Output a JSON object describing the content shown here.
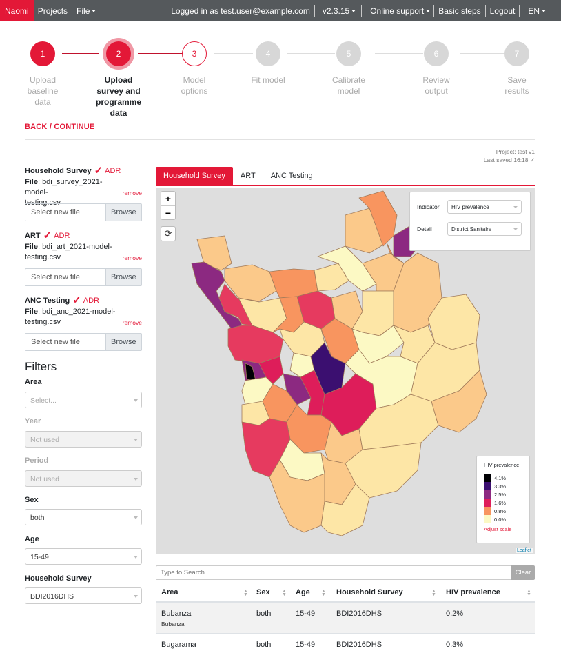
{
  "navbar": {
    "brand": "Naomi",
    "projects": "Projects",
    "file": "File",
    "logged_in": "Logged in as test.user@example.com",
    "version": "v2.3.15",
    "online_support": "Online support",
    "basic_steps": "Basic steps",
    "logout": "Logout",
    "language": "EN"
  },
  "stepper": {
    "steps": [
      {
        "number": "1",
        "label_lines": [
          "Upload",
          "baseline",
          "data"
        ],
        "state": "done"
      },
      {
        "number": "2",
        "label_lines": [
          "Upload",
          "survey and",
          "programme",
          "data"
        ],
        "state": "active"
      },
      {
        "number": "3",
        "label_lines": [
          "Model",
          "options"
        ],
        "state": "next"
      },
      {
        "number": "4",
        "label_lines": [
          "Fit model"
        ],
        "state": "todo"
      },
      {
        "number": "5",
        "label_lines": [
          "Calibrate",
          "model"
        ],
        "state": "todo"
      },
      {
        "number": "6",
        "label_lines": [
          "Review",
          "output"
        ],
        "state": "todo"
      },
      {
        "number": "7",
        "label_lines": [
          "Save",
          "results"
        ],
        "state": "todo"
      }
    ]
  },
  "nav": {
    "back": "BACK",
    "slash": " / ",
    "continue": "CONTINUE"
  },
  "project": {
    "name": "Project: test v1",
    "last_saved": "Last saved 16:18 ✓"
  },
  "uploads": [
    {
      "title": "Household Survey",
      "adr": "ADR",
      "file_label": "File",
      "file_lines": [
        ": bdi_survey_2021-model-",
        "testing.csv"
      ],
      "remove": "remove",
      "placeholder": "Select new file",
      "browse": "Browse"
    },
    {
      "title": "ART",
      "adr": "ADR",
      "file_label": "File",
      "file_lines": [
        ": bdi_art_2021-model-",
        "testing.csv"
      ],
      "remove": "remove",
      "placeholder": "Select new file",
      "browse": "Browse"
    },
    {
      "title": "ANC Testing",
      "adr": "ADR",
      "file_label": "File",
      "file_lines": [
        ": bdi_anc_2021-model-",
        "testing.csv"
      ],
      "remove": "remove",
      "placeholder": "Select new file",
      "browse": "Browse"
    }
  ],
  "filters": {
    "title": "Filters",
    "area": {
      "label": "Area",
      "value": "Select..."
    },
    "year": {
      "label": "Year",
      "value": "Not used"
    },
    "period": {
      "label": "Period",
      "value": "Not used"
    },
    "sex": {
      "label": "Sex",
      "value": "both"
    },
    "age": {
      "label": "Age",
      "value": "15-49"
    },
    "survey": {
      "label": "Household Survey",
      "value": "BDI2016DHS"
    }
  },
  "tabs": [
    "Household Survey",
    "ART",
    "ANC Testing"
  ],
  "map": {
    "zoom_in": "+",
    "zoom_out": "−",
    "refresh": "⟳",
    "indicator_label": "Indicator",
    "indicator_value": "HIV prevalence",
    "detail_label": "Detail",
    "detail_value": "District Sanitaire",
    "legend_title": "HIV prevalence",
    "legend": [
      {
        "label": "4.1%",
        "color": "#000004"
      },
      {
        "label": "3.3%",
        "color": "#3b0f70"
      },
      {
        "label": "2.5%",
        "color": "#8c2981"
      },
      {
        "label": "1.6%",
        "color": "#de1d5a"
      },
      {
        "label": "0.8%",
        "color": "#f8955f"
      },
      {
        "label": "0.0%",
        "color": "#fcf9c4"
      }
    ],
    "adjust_scale": "Adjust scale",
    "attribution": "Leaflet"
  },
  "table": {
    "search_placeholder": "Type to Search",
    "clear": "Clear",
    "columns": [
      "Area",
      "Sex",
      "Age",
      "Household Survey",
      "HIV prevalence"
    ],
    "rows": [
      {
        "area": "Bubanza",
        "area_sub": "Bubanza",
        "sex": "both",
        "age": "15-49",
        "survey": "BDI2016DHS",
        "prevalence": "0.2%"
      },
      {
        "area": "Bugarama",
        "area_sub": "",
        "sex": "both",
        "age": "15-49",
        "survey": "BDI2016DHS",
        "prevalence": "0.3%"
      }
    ]
  }
}
